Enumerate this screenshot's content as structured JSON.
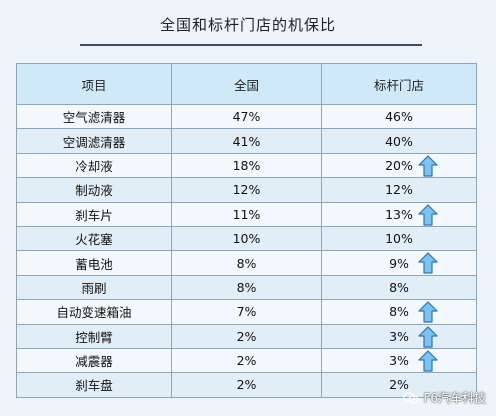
{
  "title": "全国和标杆门店的机保比",
  "table": {
    "headers": [
      "项目",
      "全国",
      "标杆门店"
    ],
    "rows": [
      {
        "item": "空气滤清器",
        "national": "47%",
        "benchmark": "46%",
        "up": false
      },
      {
        "item": "空调滤清器",
        "national": "41%",
        "benchmark": "40%",
        "up": false
      },
      {
        "item": "冷却液",
        "national": "18%",
        "benchmark": "20%",
        "up": true
      },
      {
        "item": "制动液",
        "national": "12%",
        "benchmark": "12%",
        "up": false
      },
      {
        "item": "刹车片",
        "national": "11%",
        "benchmark": "13%",
        "up": true
      },
      {
        "item": "火花塞",
        "national": "10%",
        "benchmark": "10%",
        "up": false
      },
      {
        "item": "蓄电池",
        "national": "8%",
        "benchmark": "9%",
        "up": true
      },
      {
        "item": "雨刷",
        "national": "8%",
        "benchmark": "8%",
        "up": false
      },
      {
        "item": "自动变速箱油",
        "national": "7%",
        "benchmark": "8%",
        "up": true
      },
      {
        "item": "控制臂",
        "national": "2%",
        "benchmark": "3%",
        "up": true
      },
      {
        "item": "减震器",
        "national": "2%",
        "benchmark": "3%",
        "up": true
      },
      {
        "item": "刹车盘",
        "national": "2%",
        "benchmark": "2%",
        "up": false
      }
    ]
  },
  "watermark": {
    "text": "F6汽车科技",
    "icon": "wechat-icon"
  },
  "colors": {
    "header_bg": "#cfe9f8",
    "row_light": "#f3f8fc",
    "row_dark": "#e2eef7",
    "border": "#8fa6b8",
    "arrow_fill": "#7cc4ef",
    "arrow_stroke": "#2a76b5"
  }
}
